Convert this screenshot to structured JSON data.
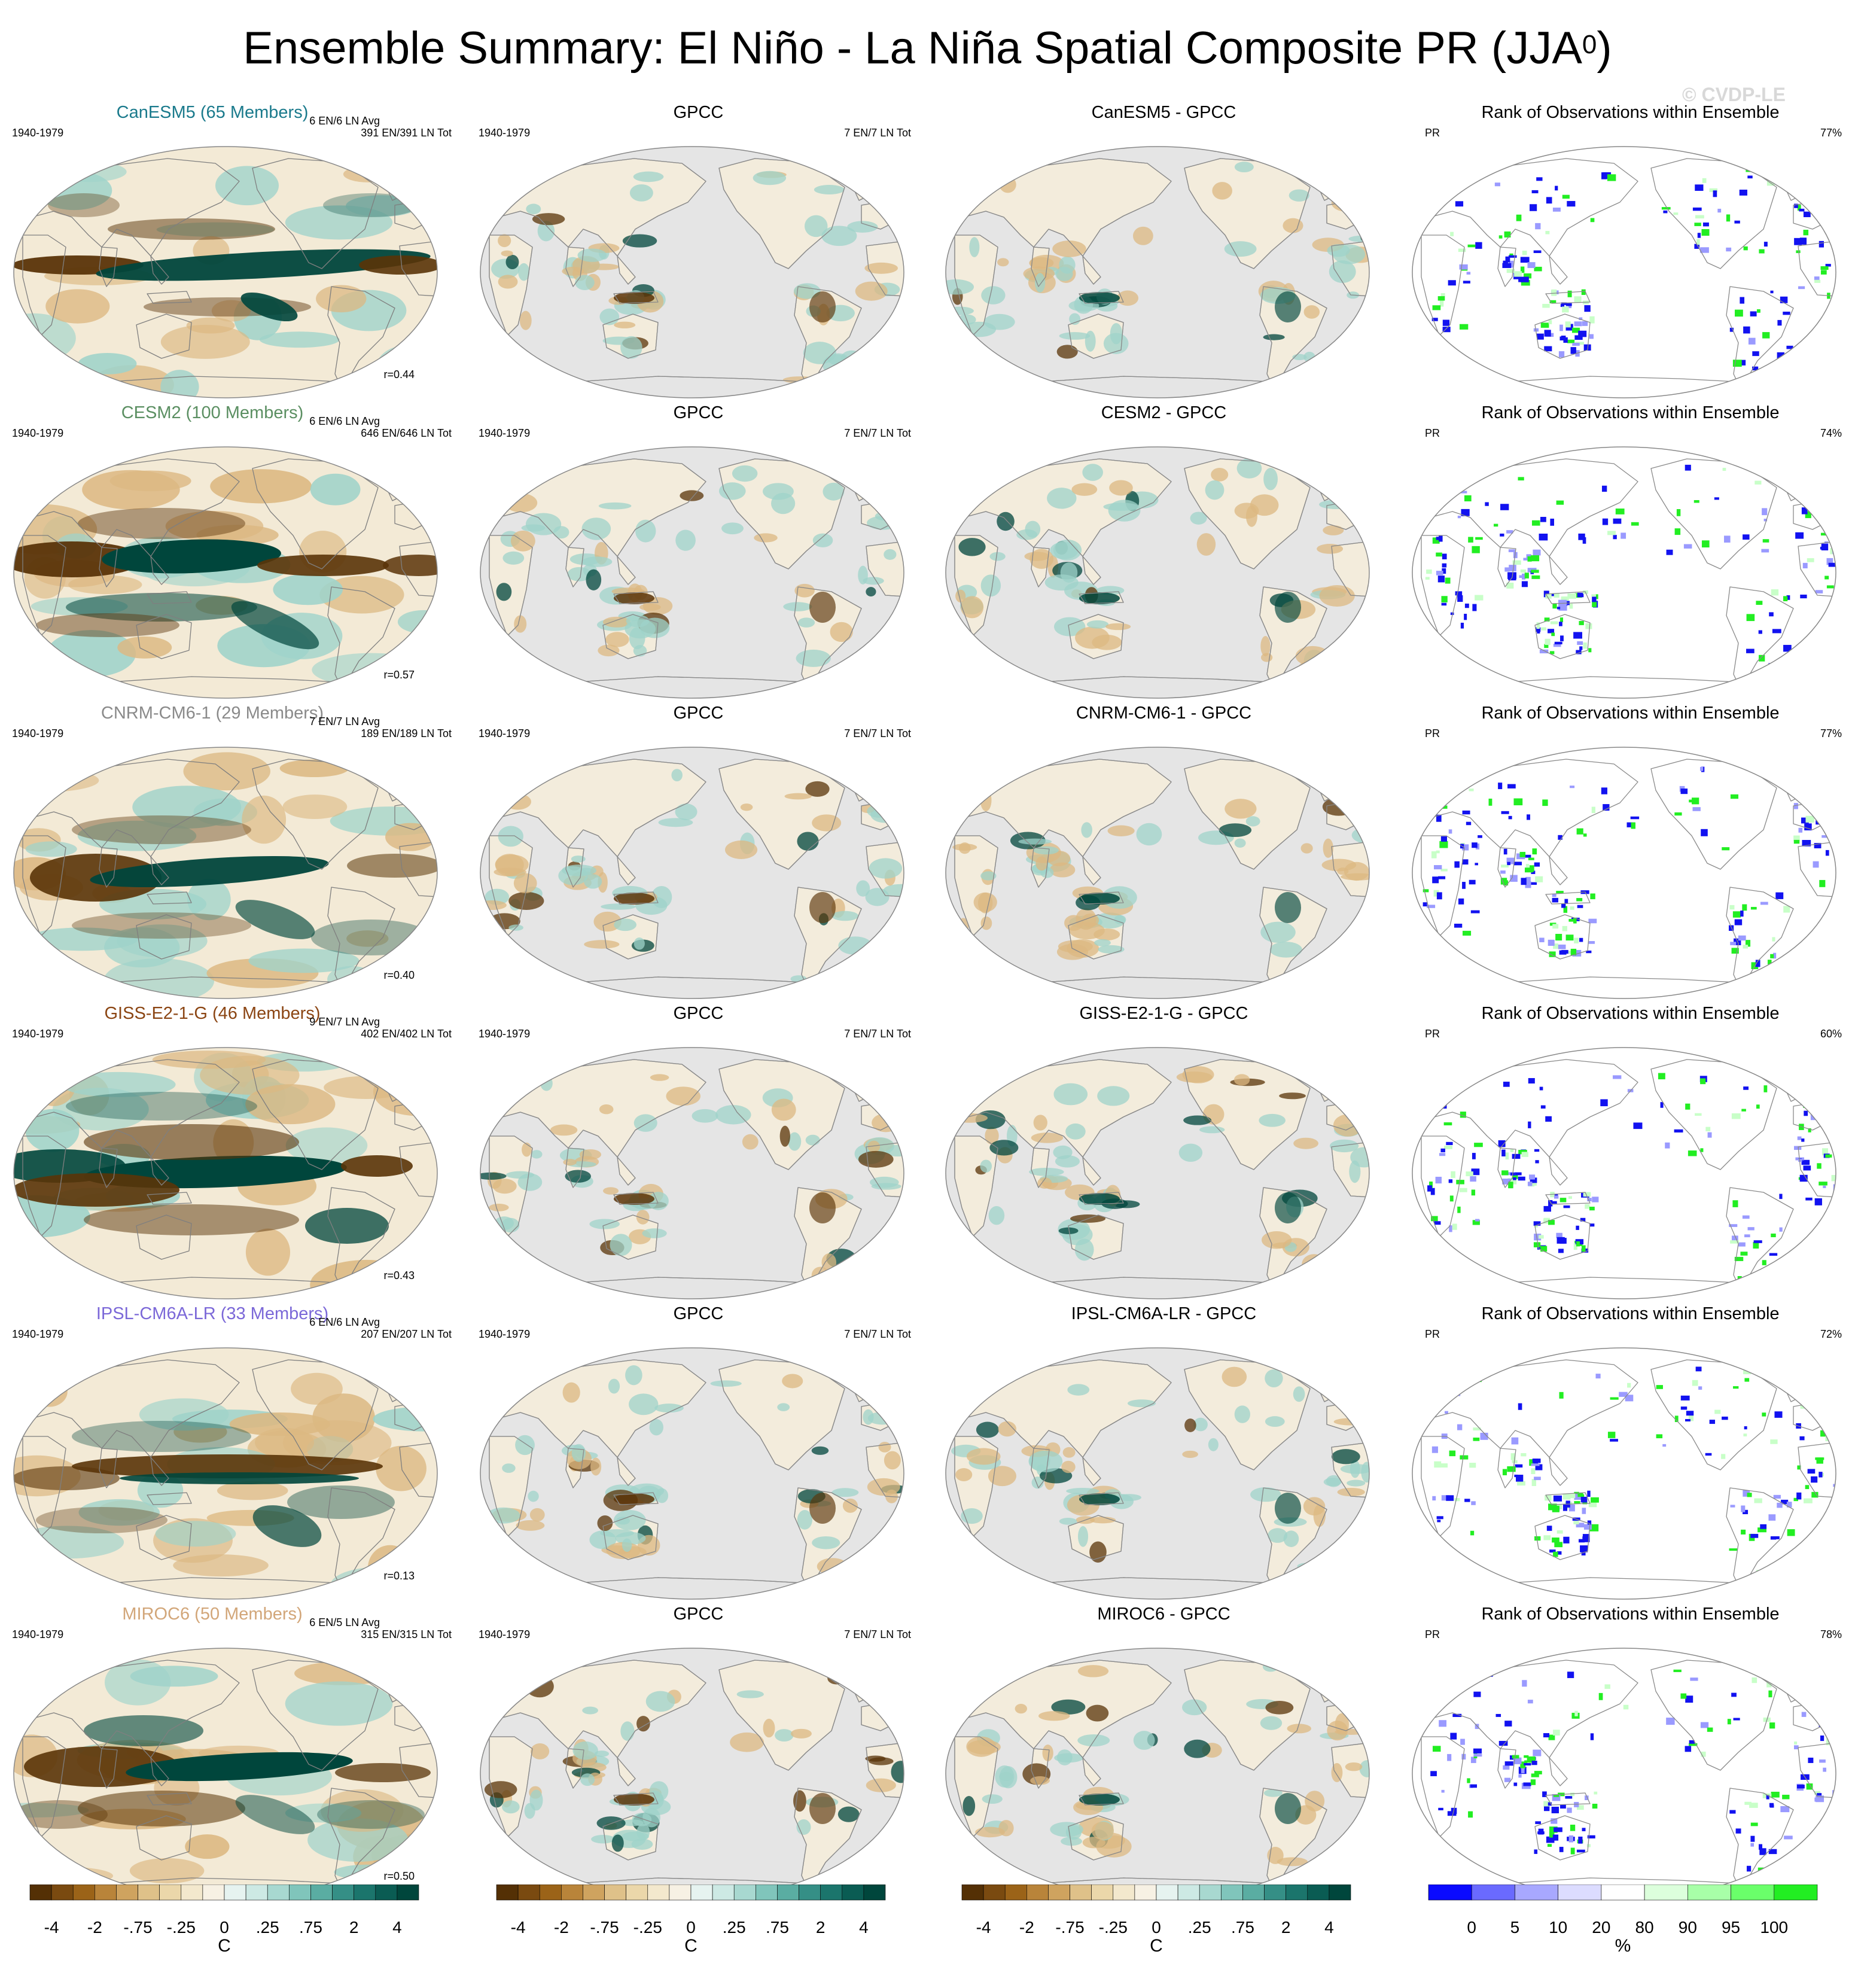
{
  "title": "Ensemble Summary: El Niño - La Niña Spatial Composite PR (JJA",
  "title_superscript": "0",
  "title_close": ")",
  "copyright": "© CVDP-LE",
  "colors": {
    "brown_dark": "#5a3408",
    "teal_dark": "#00463c",
    "ocean_gray": "#e5e5e5",
    "rank_blue": "#1212f0",
    "rank_green": "#22ee22"
  },
  "rows": [
    {
      "model_title": "CanESM5 (65 Members)",
      "model_color": "#1a7a8c",
      "period": "1940-1979",
      "stats_1": "6 EN/6 LN Avg",
      "stats_2": "391 EN/391 LN Tot",
      "corr": "r=0.44",
      "obs_title": "GPCC",
      "obs_period": "1940-1979",
      "obs_tot": "7 EN/7 LN Tot",
      "diff_title": "CanESM5 - GPCC",
      "rank_title": "Rank of Observations within Ensemble",
      "rank_var": "PR",
      "rank_pct": "77%"
    },
    {
      "model_title": "CESM2 (100 Members)",
      "model_color": "#5b8f62",
      "period": "1940-1979",
      "stats_1": "6 EN/6 LN Avg",
      "stats_2": "646 EN/646 LN Tot",
      "corr": "r=0.57",
      "obs_title": "GPCC",
      "obs_period": "1940-1979",
      "obs_tot": "7 EN/7 LN Tot",
      "diff_title": "CESM2 - GPCC",
      "rank_title": "Rank of Observations within Ensemble",
      "rank_var": "PR",
      "rank_pct": "74%"
    },
    {
      "model_title": "CNRM-CM6-1 (29 Members)",
      "model_color": "#8a8a8a",
      "period": "1940-1979",
      "stats_1": "7 EN/7 LN Avg",
      "stats_2": "189 EN/189 LN Tot",
      "corr": "r=0.40",
      "obs_title": "GPCC",
      "obs_period": "1940-1979",
      "obs_tot": "7 EN/7 LN Tot",
      "diff_title": "CNRM-CM6-1 - GPCC",
      "rank_title": "Rank of Observations within Ensemble",
      "rank_var": "PR",
      "rank_pct": "77%"
    },
    {
      "model_title": "GISS-E2-1-G (46 Members)",
      "model_color": "#8b4513",
      "period": "1940-1979",
      "stats_1": "9 EN/7 LN Avg",
      "stats_2": "402 EN/402 LN Tot",
      "corr": "r=0.43",
      "obs_title": "GPCC",
      "obs_period": "1940-1979",
      "obs_tot": "7 EN/7 LN Tot",
      "diff_title": "GISS-E2-1-G - GPCC",
      "rank_title": "Rank of Observations within Ensemble",
      "rank_var": "PR",
      "rank_pct": "60%"
    },
    {
      "model_title": "IPSL-CM6A-LR (33 Members)",
      "model_color": "#7b68d8",
      "period": "1940-1979",
      "stats_1": "6 EN/6 LN Avg",
      "stats_2": "207 EN/207 LN Tot",
      "corr": "r=0.13",
      "obs_title": "GPCC",
      "obs_period": "1940-1979",
      "obs_tot": "7 EN/7 LN Tot",
      "diff_title": "IPSL-CM6A-LR - GPCC",
      "rank_title": "Rank of Observations within Ensemble",
      "rank_var": "PR",
      "rank_pct": "72%"
    },
    {
      "model_title": "MIROC6 (50 Members)",
      "model_color": "#d2a679",
      "period": "1940-1979",
      "stats_1": "6 EN/5 LN Avg",
      "stats_2": "315 EN/315 LN Tot",
      "corr": "r=0.50",
      "obs_title": "GPCC",
      "obs_period": "1940-1979",
      "obs_tot": "7 EN/7 LN Tot",
      "diff_title": "MIROC6 - GPCC",
      "rank_title": "Rank of Observations within Ensemble",
      "rank_var": "PR",
      "rank_pct": "78%"
    }
  ],
  "colorbar_pr": {
    "ticks": [
      "-4",
      "-2",
      "-.75",
      "-.25",
      "0",
      ".25",
      ".75",
      "2",
      "4"
    ],
    "unit": "C",
    "colors": [
      "#543005",
      "#7a4a10",
      "#9b6318",
      "#b9843a",
      "#cfa35f",
      "#dfc189",
      "#ebd7aa",
      "#f3e8cd",
      "#f7f1e4",
      "#e6f3f0",
      "#cde9e4",
      "#a8d8d0",
      "#80c5bb",
      "#5aada2",
      "#358f86",
      "#1b756c",
      "#0a5c53",
      "#00463c"
    ]
  },
  "colorbar_rank": {
    "ticks": [
      "0",
      "5",
      "10",
      "20",
      "80",
      "90",
      "95",
      "100"
    ],
    "unit": "%",
    "colors": [
      "#0a0aff",
      "#6a6aff",
      "#a8a8ff",
      "#dcdcff",
      "#ffffff",
      "#dcffdc",
      "#a8ffa8",
      "#6aff6a",
      "#22ee22"
    ]
  }
}
